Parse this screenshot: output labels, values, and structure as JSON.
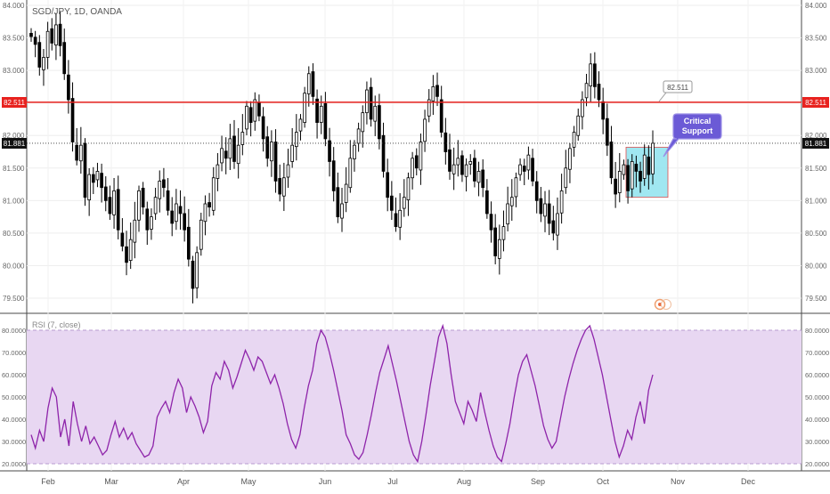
{
  "header": {
    "symbol_label": "SGD/JPY, 1D, OANDA"
  },
  "chart_data": [
    {
      "type": "candlestick",
      "symbol": "SGD/JPY",
      "interval": "1D",
      "source": "OANDA",
      "ylim": [
        79.3,
        84.0
      ],
      "y_ticks": [
        "84.000",
        "83.500",
        "83.000",
        "82.500",
        "82.000",
        "81.500",
        "81.000",
        "80.500",
        "80.000",
        "79.500"
      ],
      "x_ticks": [
        "Feb",
        "Mar",
        "Apr",
        "May",
        "Jun",
        "Jul",
        "Aug",
        "Sep",
        "Oct",
        "Nov",
        "Dec"
      ],
      "horizontal_line": {
        "value": 82.511,
        "label": "82.511",
        "color": "#e8221f"
      },
      "last_price": {
        "value": 81.881,
        "label": "81.881"
      },
      "callout_price": {
        "value": 82.511,
        "label": "82.511"
      },
      "annotation": {
        "text_line1": "Critical",
        "text_line2": "Support",
        "color": "#6b5ad6"
      },
      "support_box": {
        "y_low": 81.05,
        "y_high": 81.82,
        "color": "#8fe3ef"
      },
      "candle_colors": {
        "up": "#ffffff",
        "down": "#000000",
        "outline": "#000000"
      },
      "series": [
        {
          "name": "close",
          "values": [
            83.52,
            83.4,
            83.05,
            83.2,
            83.6,
            83.42,
            83.7,
            83.38,
            82.95,
            82.55,
            81.9,
            81.62,
            81.85,
            81.05,
            81.4,
            81.28,
            81.45,
            81.2,
            81.0,
            80.8,
            81.15,
            80.55,
            80.3,
            80.05,
            80.4,
            80.7,
            81.15,
            80.9,
            80.55,
            80.75,
            81.05,
            81.3,
            81.2,
            80.85,
            80.65,
            80.95,
            80.8,
            80.55,
            80.1,
            79.65,
            80.2,
            80.7,
            80.95,
            80.9,
            81.35,
            81.55,
            81.8,
            81.65,
            81.95,
            81.6,
            81.85,
            82.05,
            82.45,
            82.2,
            82.55,
            82.3,
            81.95,
            81.65,
            81.9,
            81.3,
            81.1,
            81.35,
            81.55,
            81.85,
            82.05,
            82.25,
            82.65,
            82.95,
            82.6,
            82.2,
            82.45,
            81.95,
            81.6,
            81.15,
            80.75,
            80.95,
            81.25,
            81.65,
            81.85,
            82.1,
            82.35,
            82.7,
            82.25,
            82.45,
            81.95,
            81.45,
            81.05,
            80.85,
            80.6,
            80.85,
            81.05,
            81.35,
            81.65,
            81.5,
            81.9,
            82.25,
            82.55,
            82.75,
            82.6,
            82.05,
            81.75,
            81.45,
            81.55,
            81.65,
            81.4,
            81.55,
            81.6,
            81.3,
            81.45,
            81.2,
            80.8,
            80.55,
            80.15,
            80.4,
            80.6,
            80.95,
            81.05,
            81.35,
            81.55,
            81.45,
            81.7,
            81.3,
            81.0,
            80.8,
            80.95,
            80.65,
            80.5,
            80.8,
            81.15,
            81.5,
            81.8,
            82.05,
            82.3,
            82.55,
            82.8,
            83.1,
            82.75,
            82.55,
            82.25,
            81.85,
            81.35,
            81.1,
            81.45,
            81.55,
            81.15,
            81.6,
            81.45,
            81.3,
            81.7,
            81.4,
            81.881
          ]
        }
      ]
    },
    {
      "type": "line",
      "title": "RSI (7, close)",
      "ylim": [
        18,
        82
      ],
      "y_ticks": [
        "80.0000",
        "70.0000",
        "60.0000",
        "50.0000",
        "40.0000",
        "30.0000",
        "20.0000"
      ],
      "band": [
        20,
        80
      ],
      "band_color": "#e8d7f2",
      "line_color": "#8e24aa",
      "series": [
        {
          "name": "RSI",
          "values": [
            33,
            27,
            35,
            30,
            45,
            54,
            50,
            32,
            40,
            28,
            48,
            38,
            30,
            37,
            29,
            32,
            28,
            24,
            26,
            33,
            39,
            32,
            36,
            31,
            34,
            29,
            26,
            23,
            24,
            28,
            41,
            45,
            48,
            43,
            52,
            58,
            54,
            43,
            50,
            46,
            41,
            34,
            39,
            55,
            61,
            58,
            66,
            62,
            54,
            59,
            65,
            71,
            67,
            62,
            68,
            66,
            61,
            56,
            60,
            54,
            47,
            38,
            31,
            27,
            33,
            45,
            55,
            62,
            74,
            80,
            77,
            70,
            62,
            53,
            44,
            33,
            29,
            24,
            22,
            25,
            33,
            42,
            52,
            61,
            67,
            73,
            65,
            57,
            48,
            39,
            30,
            24,
            21,
            30,
            42,
            55,
            66,
            77,
            82,
            74,
            60,
            48,
            43,
            38,
            48,
            44,
            39,
            52,
            43,
            35,
            28,
            23,
            21,
            29,
            38,
            50,
            60,
            66,
            69,
            62,
            55,
            46,
            37,
            31,
            27,
            30,
            40,
            50,
            58,
            65,
            71,
            76,
            80,
            82,
            76,
            68,
            60,
            50,
            40,
            30,
            23,
            28,
            35,
            31,
            41,
            48,
            38,
            53,
            60
          ]
        }
      ]
    }
  ]
}
